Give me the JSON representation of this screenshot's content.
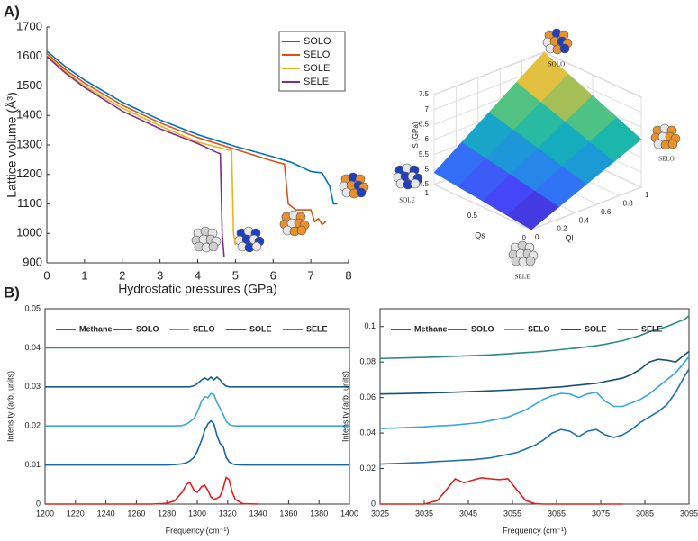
{
  "chart_data": [
    {
      "type": "line",
      "panel": "A)",
      "xlabel": "Hydrostatic pressures (GPa)",
      "ylabel": "Lattice volume (Å³)",
      "xlim": [
        0,
        8
      ],
      "xticks": [
        0,
        1,
        2,
        3,
        4,
        5,
        6,
        7,
        8
      ],
      "ylim": [
        900,
        1700
      ],
      "yticks": [
        900,
        1000,
        1100,
        1200,
        1300,
        1400,
        1500,
        1600,
        1700
      ],
      "grid": false,
      "legend": "upper right",
      "series": [
        {
          "name": "SOLO",
          "color": "#0072bd",
          "x": [
            0,
            0.5,
            1,
            2,
            3,
            4,
            5,
            6,
            6.5,
            7,
            7.3,
            7.5,
            7.6,
            7.7
          ],
          "values": [
            1618,
            1565,
            1520,
            1445,
            1385,
            1335,
            1295,
            1260,
            1240,
            1210,
            1205,
            1160,
            1100,
            1100
          ]
        },
        {
          "name": "SELO",
          "color": "#d95319",
          "x": [
            0,
            0.5,
            1,
            2,
            3,
            4,
            5,
            6,
            6.3,
            6.4,
            6.6,
            7,
            7.1,
            7.2,
            7.3,
            7.4
          ],
          "values": [
            1610,
            1555,
            1510,
            1435,
            1375,
            1325,
            1285,
            1245,
            1235,
            1100,
            1080,
            1080,
            1040,
            1050,
            1030,
            1040
          ]
        },
        {
          "name": "SOLE",
          "color": "#edb120",
          "x": [
            0,
            0.5,
            1,
            2,
            3,
            4,
            4.9,
            4.95,
            5.0
          ],
          "values": [
            1605,
            1548,
            1500,
            1425,
            1365,
            1310,
            1280,
            1000,
            960
          ]
        },
        {
          "name": "SELE",
          "color": "#7e2f8e",
          "x": [
            0,
            0.5,
            1,
            2,
            3,
            4,
            4.5,
            4.6,
            4.65,
            4.7
          ],
          "values": [
            1600,
            1543,
            1495,
            1415,
            1355,
            1305,
            1275,
            1270,
            1000,
            920
          ]
        }
      ]
    },
    {
      "type": "surface",
      "zlabel": "S (GPa)",
      "xlabel": "Qs",
      "ylabel": "Ql",
      "xlim": [
        0,
        1
      ],
      "xticks": [
        0,
        0.5,
        1
      ],
      "ylim": [
        0,
        1
      ],
      "yticks": [
        0,
        0.2,
        0.4,
        0.6,
        0.8,
        1
      ],
      "zlim": [
        4.5,
        7.5
      ],
      "zticks": [
        4.5,
        5,
        5.5,
        6,
        6.5,
        7,
        7.5
      ],
      "grid": true,
      "x": [
        0,
        0.25,
        0.5,
        0.75,
        1
      ],
      "y": [
        0,
        0.25,
        0.5,
        0.75,
        1
      ],
      "z": [
        [
          4.5,
          4.9,
          5.3,
          5.7,
          6.1
        ],
        [
          4.6,
          5.06,
          5.53,
          5.99,
          6.45
        ],
        [
          4.7,
          5.23,
          5.75,
          6.28,
          6.8
        ],
        [
          4.8,
          5.39,
          5.98,
          6.56,
          7.15
        ],
        [
          4.9,
          5.55,
          6.2,
          6.85,
          7.5
        ]
      ],
      "corner_labels": [
        "SOLO",
        "SELO",
        "SOLE",
        "SELE"
      ]
    },
    {
      "type": "line",
      "panel": "B)",
      "xlabel": "Frequency (cm⁻¹)",
      "ylabel": "Intensity (arb. units)",
      "xlim": [
        1200,
        1400
      ],
      "xticks": [
        1200,
        1220,
        1240,
        1260,
        1280,
        1300,
        1320,
        1340,
        1360,
        1380,
        1400
      ],
      "ylim": [
        0,
        0.05
      ],
      "yticks": [
        0,
        0.01,
        0.02,
        0.03,
        0.04,
        0.05
      ],
      "grid": false,
      "legend": "upper left",
      "x": [
        1200,
        1220,
        1240,
        1260,
        1270,
        1280,
        1285,
        1290,
        1293,
        1295,
        1298,
        1300,
        1303,
        1305,
        1307,
        1309,
        1311,
        1313,
        1315,
        1317,
        1319,
        1321,
        1323,
        1325,
        1330,
        1340,
        1360,
        1380,
        1400
      ],
      "series": [
        {
          "name": "Methane",
          "color": "#e0201b",
          "values": [
            0,
            0,
            0,
            0,
            0,
            0.0002,
            0.0008,
            0.003,
            0.005,
            0.0056,
            0.0035,
            0.003,
            0.0045,
            0.0048,
            0.0035,
            0.0018,
            0.0012,
            0.0015,
            0.002,
            0.004,
            0.0068,
            0.0062,
            0.003,
            0.0012,
            0.0001,
            0,
            null,
            null,
            null
          ]
        },
        {
          "name": "SOLO",
          "color": "#1565a8",
          "values": [
            0.01,
            0.01,
            0.01,
            0.01,
            0.01,
            0.01,
            0.0101,
            0.0103,
            0.0106,
            0.011,
            0.012,
            0.0135,
            0.0165,
            0.019,
            0.0205,
            0.0213,
            0.0205,
            0.0175,
            0.0155,
            0.0148,
            0.012,
            0.0108,
            0.0103,
            0.0101,
            0.01,
            0.01,
            0.01,
            0.01,
            0.01
          ]
        },
        {
          "name": "SELO",
          "color": "#3aa6dd",
          "values": [
            0.02,
            0.02,
            0.02,
            0.02,
            0.02,
            0.02,
            0.02,
            0.0201,
            0.0205,
            0.021,
            0.022,
            0.0235,
            0.0265,
            0.0275,
            0.0272,
            0.0283,
            0.028,
            0.026,
            0.0245,
            0.023,
            0.0212,
            0.0204,
            0.0201,
            0.02,
            0.02,
            0.02,
            0.02,
            0.02,
            0.02
          ]
        },
        {
          "name": "SOLE",
          "color": "#1c5d8a",
          "values": [
            0.03,
            0.03,
            0.03,
            0.03,
            0.03,
            0.03,
            0.03,
            0.03,
            0.03,
            0.03,
            0.0303,
            0.0308,
            0.0318,
            0.0323,
            0.0318,
            0.0325,
            0.0318,
            0.0325,
            0.0318,
            0.0308,
            0.0302,
            0.03,
            0.03,
            0.03,
            0.03,
            0.03,
            0.03,
            0.03,
            0.03
          ]
        },
        {
          "name": "SELE",
          "color": "#2a8c82",
          "values": [
            0.04,
            0.04,
            0.04,
            0.04,
            0.04,
            0.04,
            0.04,
            0.04,
            0.04,
            0.04,
            0.04,
            0.04,
            0.04,
            0.04,
            0.04,
            0.04,
            0.04,
            0.04,
            0.04,
            0.04,
            0.04,
            0.04,
            0.04,
            0.04,
            0.04,
            0.04,
            0.04,
            0.04,
            0.04
          ]
        }
      ]
    },
    {
      "type": "line",
      "xlabel": "Frequency (cm⁻¹)",
      "ylabel": "Intensity (arb. units)",
      "xlim": [
        3025,
        3095
      ],
      "xticks": [
        3025,
        3035,
        3045,
        3055,
        3065,
        3075,
        3085,
        3095
      ],
      "ylim": [
        0,
        0.11
      ],
      "yticks": [
        0,
        0.02,
        0.04,
        0.06,
        0.08,
        0.1
      ],
      "grid": false,
      "legend": "upper left",
      "x": [
        3025,
        3030,
        3035,
        3038,
        3040,
        3042,
        3044,
        3046,
        3048,
        3050,
        3052,
        3054,
        3056,
        3058,
        3060,
        3062,
        3064,
        3066,
        3068,
        3070,
        3072,
        3074,
        3076,
        3078,
        3080,
        3082,
        3084,
        3086,
        3088,
        3090,
        3092,
        3094,
        3095
      ],
      "series": [
        {
          "name": "Methane",
          "color": "#e0201b",
          "values": [
            0,
            0,
            0,
            0.002,
            0.008,
            0.0142,
            0.012,
            0.0135,
            0.0148,
            0.0142,
            0.0138,
            0.0142,
            0.008,
            0.002,
            0.0003,
            0,
            0,
            0,
            0,
            0,
            0,
            0,
            0,
            0,
            0,
            null,
            null,
            null,
            null,
            null,
            null,
            null,
            null
          ]
        },
        {
          "name": "SOLO",
          "color": "#1f6fb0",
          "values": [
            0.0225,
            0.023,
            0.0235,
            0.024,
            0.0242,
            0.0245,
            0.0248,
            0.025,
            0.0255,
            0.026,
            0.027,
            0.028,
            0.029,
            0.031,
            0.033,
            0.036,
            0.04,
            0.042,
            0.041,
            0.038,
            0.041,
            0.042,
            0.039,
            0.0375,
            0.039,
            0.042,
            0.046,
            0.049,
            0.052,
            0.056,
            0.063,
            0.072,
            0.076
          ]
        },
        {
          "name": "SELO",
          "color": "#3aa6dd",
          "values": [
            0.0425,
            0.043,
            0.0435,
            0.044,
            0.0442,
            0.0445,
            0.045,
            0.0455,
            0.046,
            0.047,
            0.048,
            0.049,
            0.051,
            0.053,
            0.056,
            0.059,
            0.061,
            0.0623,
            0.062,
            0.06,
            0.062,
            0.063,
            0.058,
            0.055,
            0.055,
            0.057,
            0.059,
            0.062,
            0.066,
            0.07,
            0.074,
            0.08,
            0.083
          ]
        },
        {
          "name": "SOLE",
          "color": "#1a4f72",
          "values": [
            0.062,
            0.0622,
            0.0625,
            0.0627,
            0.0628,
            0.063,
            0.0632,
            0.0634,
            0.0636,
            0.0638,
            0.064,
            0.0642,
            0.0645,
            0.0648,
            0.065,
            0.0653,
            0.0657,
            0.066,
            0.0665,
            0.067,
            0.0675,
            0.068,
            0.069,
            0.07,
            0.071,
            0.073,
            0.076,
            0.08,
            0.0815,
            0.081,
            0.08,
            0.084,
            0.086
          ]
        },
        {
          "name": "SELE",
          "color": "#2a8c82",
          "values": [
            0.082,
            0.0823,
            0.0826,
            0.0828,
            0.083,
            0.0832,
            0.0834,
            0.0836,
            0.0838,
            0.084,
            0.0843,
            0.0846,
            0.085,
            0.0853,
            0.0856,
            0.086,
            0.0865,
            0.087,
            0.0875,
            0.088,
            0.0886,
            0.0892,
            0.09,
            0.091,
            0.092,
            0.0935,
            0.095,
            0.097,
            0.0985,
            0.1,
            0.102,
            0.104,
            0.106
          ]
        }
      ]
    }
  ]
}
